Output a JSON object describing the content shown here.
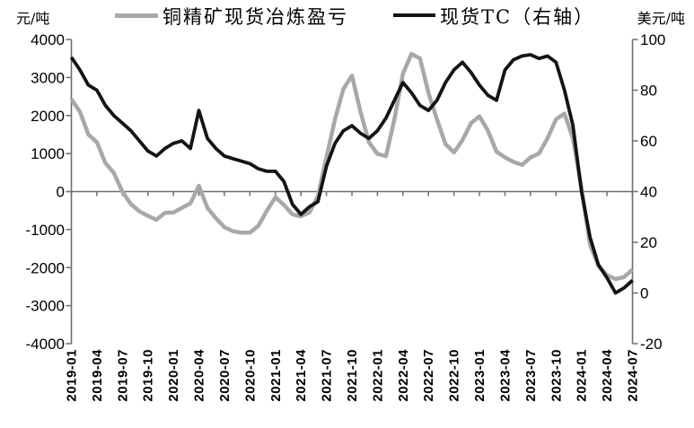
{
  "chart": {
    "left_axis_unit": "元/吨",
    "right_axis_unit": "美元/吨",
    "legend": [
      {
        "label": "铜精矿现货冶炼盈亏",
        "color": "#a8a8a8"
      },
      {
        "label": "现货TC（右轴）",
        "color": "#141414"
      }
    ]
  },
  "chart_data": {
    "type": "line",
    "title": "",
    "grid": false,
    "legend_position": "top",
    "x": [
      "2019-01",
      "2019-02",
      "2019-03",
      "2019-04",
      "2019-05",
      "2019-06",
      "2019-07",
      "2019-08",
      "2019-09",
      "2019-10",
      "2019-11",
      "2019-12",
      "2020-01",
      "2020-02",
      "2020-03",
      "2020-04",
      "2020-05",
      "2020-06",
      "2020-07",
      "2020-08",
      "2020-09",
      "2020-10",
      "2020-11",
      "2020-12",
      "2021-01",
      "2021-02",
      "2021-03",
      "2021-04",
      "2021-05",
      "2021-06",
      "2021-07",
      "2021-08",
      "2021-09",
      "2021-10",
      "2021-11",
      "2021-12",
      "2022-01",
      "2022-02",
      "2022-03",
      "2022-04",
      "2022-05",
      "2022-06",
      "2022-07",
      "2022-08",
      "2022-09",
      "2022-10",
      "2022-11",
      "2022-12",
      "2023-01",
      "2023-02",
      "2023-03",
      "2023-04",
      "2023-05",
      "2023-06",
      "2023-07",
      "2023-08",
      "2023-09",
      "2023-10",
      "2023-11",
      "2023-12",
      "2024-01",
      "2024-02",
      "2024-03",
      "2024-04",
      "2024-05",
      "2024-06",
      "2024-07"
    ],
    "x_tick_labels": [
      "2019-01",
      "2019-04",
      "2019-07",
      "2019-10",
      "2020-01",
      "2020-04",
      "2020-07",
      "2020-10",
      "2021-01",
      "2021-04",
      "2021-07",
      "2021-10",
      "2022-01",
      "2022-04",
      "2022-07",
      "2022-10",
      "2023-01",
      "2023-04",
      "2023-07",
      "2023-10",
      "2024-01",
      "2024-04",
      "2024-07"
    ],
    "series": [
      {
        "name": "铜精矿现货冶炼盈亏",
        "axis": "left",
        "unit": "元/吨",
        "color": "#a8a8a8",
        "stroke_width": 4.5,
        "values": [
          2430,
          2100,
          1500,
          1300,
          750,
          490,
          0,
          -330,
          -520,
          -640,
          -740,
          -560,
          -550,
          -430,
          -310,
          150,
          -430,
          -700,
          -940,
          -1040,
          -1080,
          -1080,
          -900,
          -500,
          -150,
          -350,
          -600,
          -650,
          -550,
          -120,
          900,
          1900,
          2700,
          3050,
          2100,
          1300,
          990,
          930,
          1900,
          3100,
          3620,
          3500,
          2600,
          1900,
          1250,
          1030,
          1350,
          1800,
          1980,
          1600,
          1050,
          900,
          780,
          700,
          900,
          1000,
          1400,
          1900,
          2050,
          1400,
          100,
          -1400,
          -1950,
          -2200,
          -2300,
          -2250,
          -2050
        ]
      },
      {
        "name": "现货TC（右轴）",
        "axis": "right",
        "unit": "美元/吨",
        "color": "#141414",
        "stroke_width": 3.8,
        "values": [
          93,
          88,
          82,
          80,
          74,
          70,
          67,
          64,
          60,
          56,
          54,
          57,
          59,
          60,
          57,
          72,
          61,
          57,
          54,
          53,
          52,
          51,
          49,
          48,
          48,
          44,
          35,
          31,
          34,
          36,
          50,
          59,
          64,
          66,
          63,
          61,
          64,
          69,
          76,
          83,
          79,
          74,
          72,
          76,
          83,
          88,
          91,
          87,
          82,
          78,
          76,
          88,
          92,
          93.5,
          94,
          92.5,
          93.5,
          91,
          80,
          66,
          40,
          22,
          11,
          6,
          0,
          2,
          5
        ]
      }
    ],
    "left_axis": {
      "unit": "元/吨",
      "min": -4000,
      "max": 4000,
      "tick_step": 1000,
      "ticks": [
        4000,
        3000,
        2000,
        1000,
        0,
        -1000,
        -2000,
        -3000,
        -4000
      ]
    },
    "right_axis": {
      "unit": "美元/吨",
      "min": -20,
      "max": 100,
      "tick_step": 20,
      "ticks": [
        100,
        80,
        60,
        40,
        20,
        0,
        -20
      ]
    },
    "axis_color": "#6e6e6e"
  }
}
